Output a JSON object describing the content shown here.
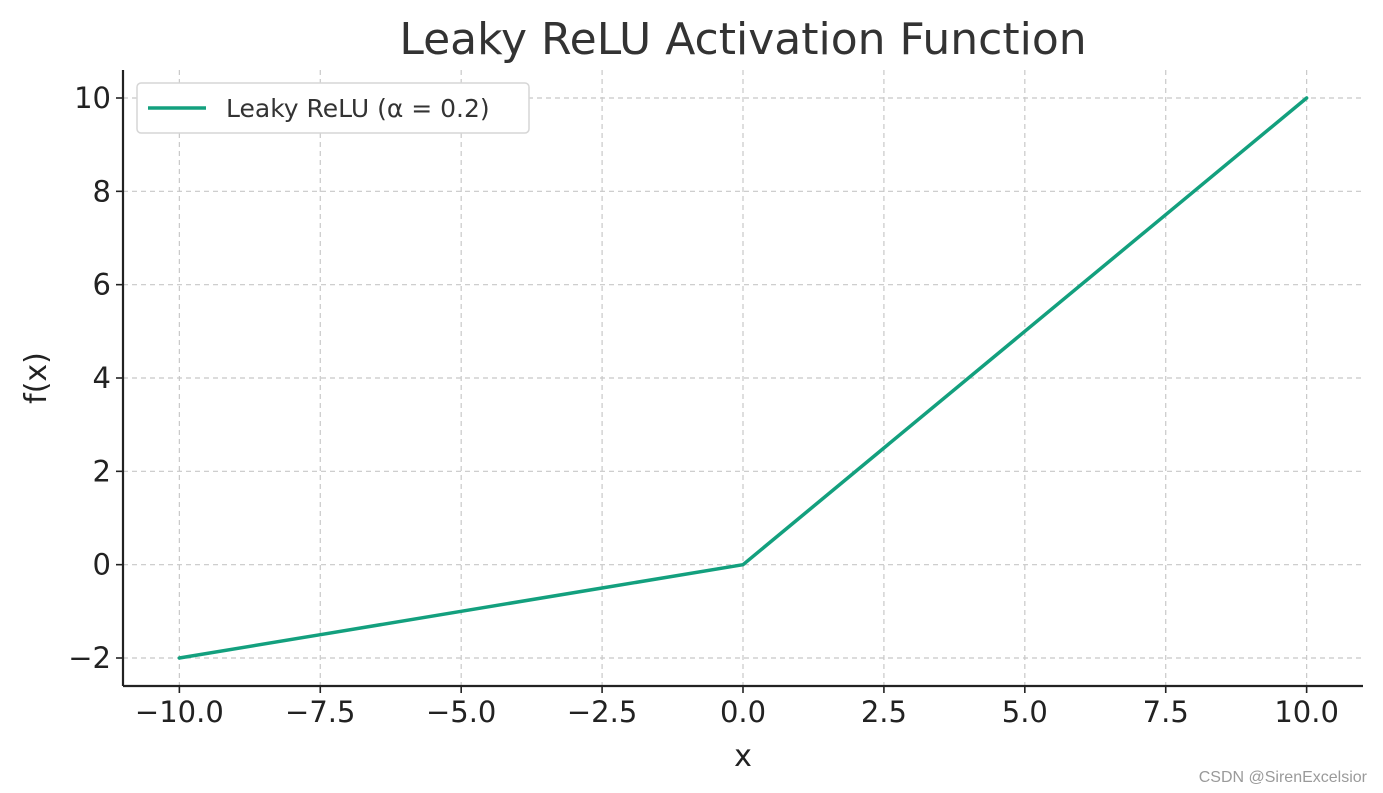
{
  "chart_data": {
    "type": "line",
    "title": "Leaky ReLU Activation Function",
    "xlabel": "x",
    "ylabel": "f(x)",
    "xlim": [
      -11,
      11
    ],
    "ylim": [
      -2.6,
      10.6
    ],
    "x_ticks": [
      -10.0,
      -7.5,
      -5.0,
      -2.5,
      0.0,
      2.5,
      5.0,
      7.5,
      10.0
    ],
    "x_tick_labels": [
      "−10.0",
      "−7.5",
      "−5.0",
      "−2.5",
      "0.0",
      "2.5",
      "5.0",
      "7.5",
      "10.0"
    ],
    "y_ticks": [
      -2,
      0,
      2,
      4,
      6,
      8,
      10
    ],
    "y_tick_labels": [
      "−2",
      "0",
      "2",
      "4",
      "6",
      "8",
      "10"
    ],
    "grid": true,
    "legend_position": "top-left",
    "series": [
      {
        "name": "Leaky ReLU (α = 0.2)",
        "color": "#13a07e",
        "x": [
          -10,
          -7.5,
          -5,
          -2.5,
          0,
          2.5,
          5,
          7.5,
          10
        ],
        "y": [
          -2,
          -1.5,
          -1,
          -0.5,
          0,
          2.5,
          5,
          7.5,
          10
        ]
      }
    ]
  },
  "watermark": "CSDN @SirenExcelsior"
}
